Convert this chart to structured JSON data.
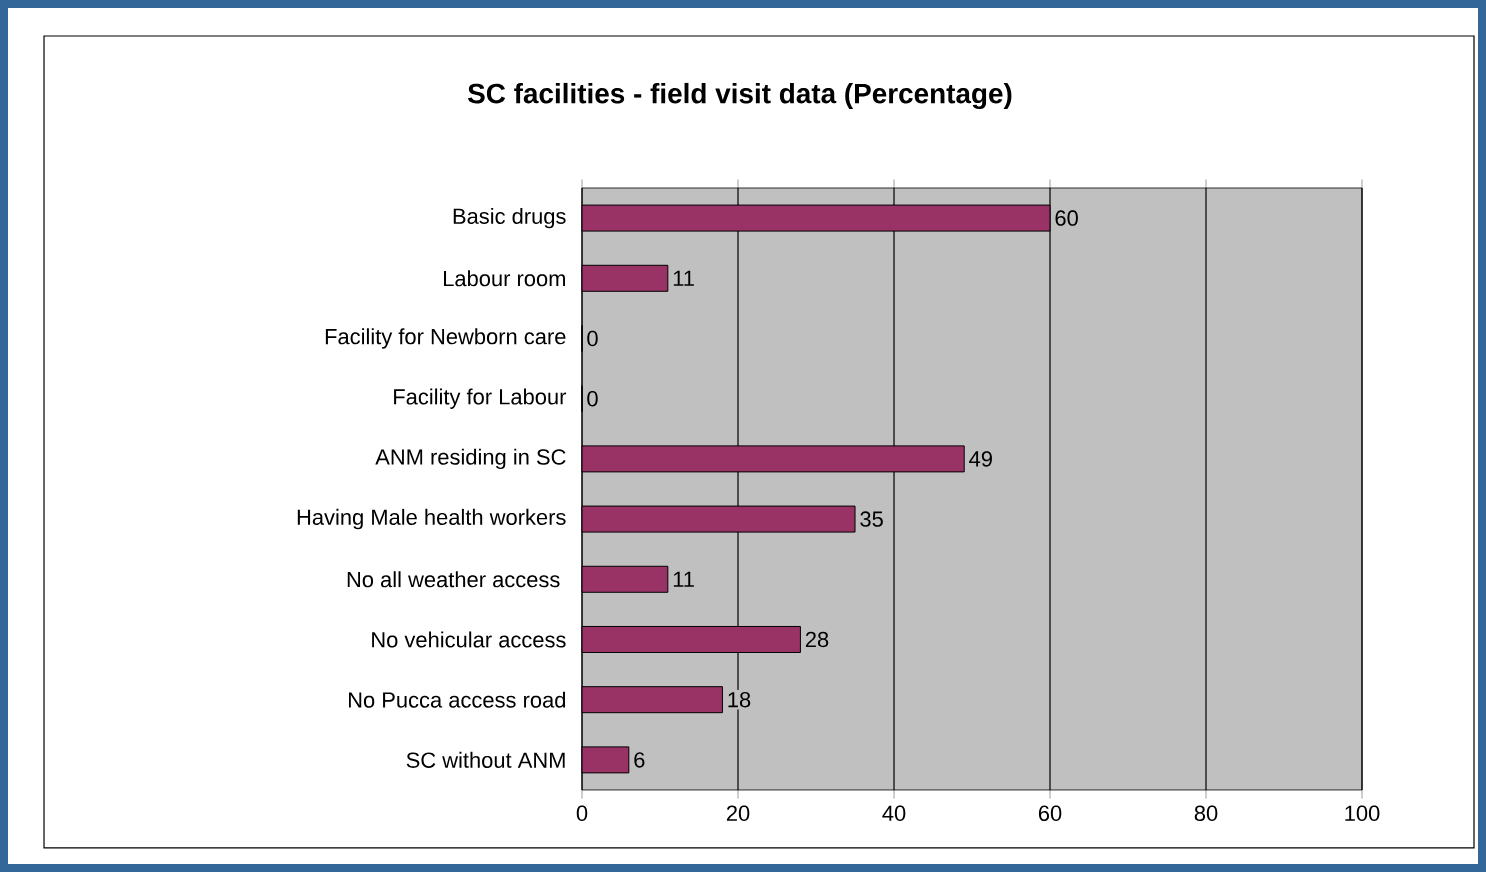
{
  "chart_data": {
    "type": "bar",
    "orientation": "horizontal",
    "title": "SC facilities - field visit data (Percentage)",
    "categories": [
      "Basic drugs",
      "Labour room",
      "Facility for Newborn care",
      "Facility for Labour",
      "ANM residing in SC",
      "Having Male health workers",
      "No all weather access ",
      "No vehicular access",
      "No Pucca access road",
      "SC without ANM"
    ],
    "values": [
      60,
      11,
      0,
      0,
      49,
      35,
      11,
      28,
      18,
      6
    ],
    "color": "#993366",
    "xlim": [
      0,
      100
    ],
    "xticks": [
      0,
      20,
      40,
      60,
      80,
      100
    ],
    "grid": "x",
    "data_labels": true
  }
}
